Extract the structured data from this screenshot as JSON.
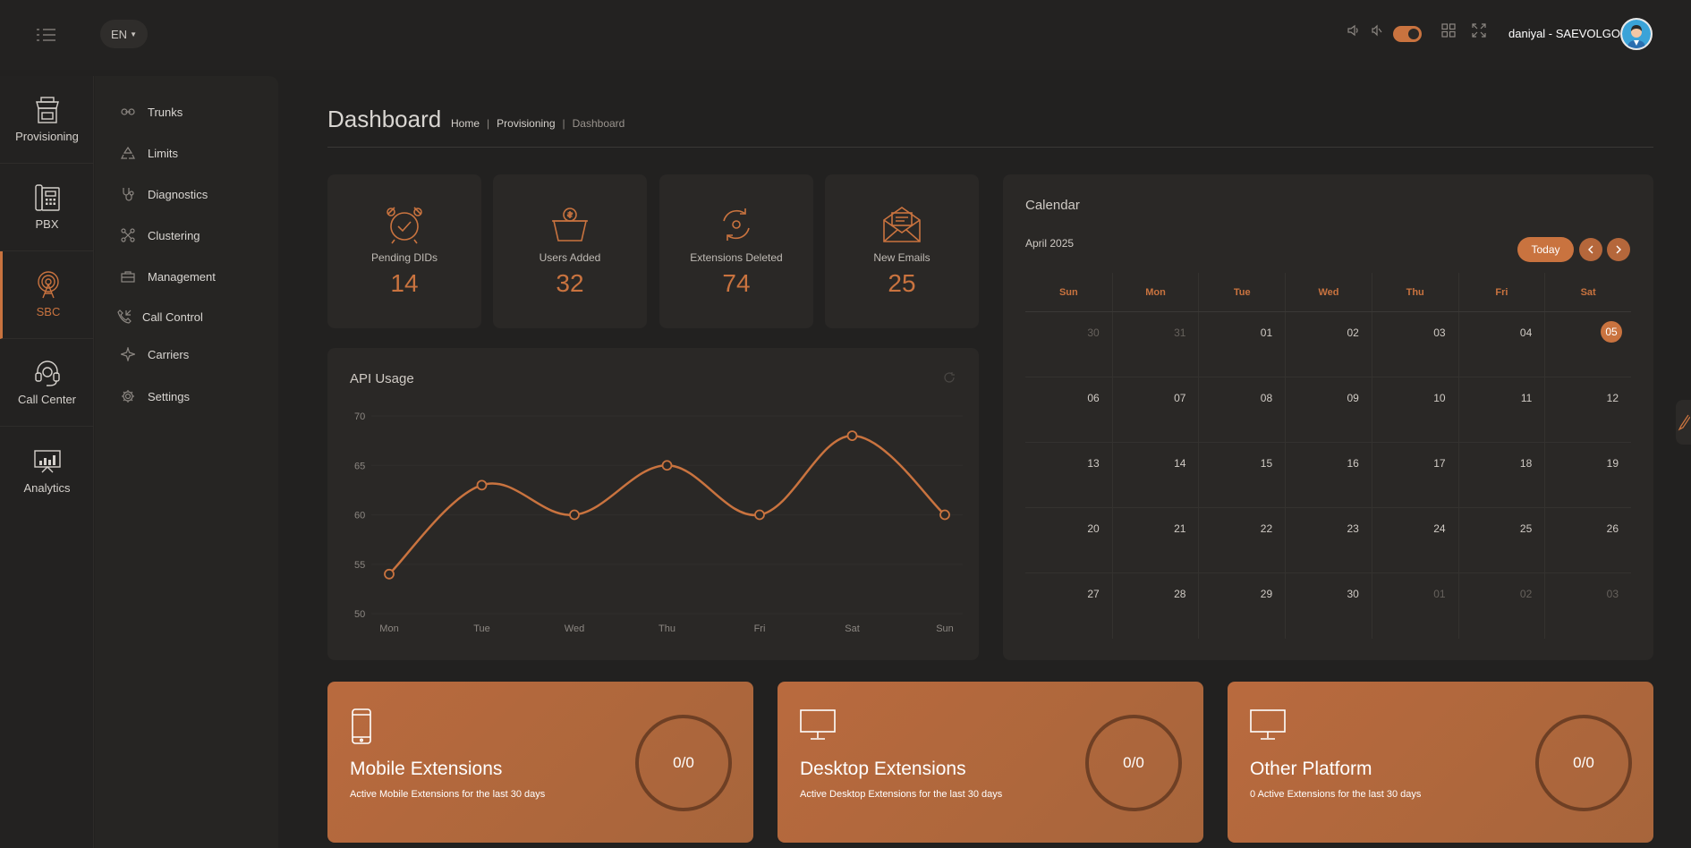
{
  "header": {
    "language": "EN",
    "username": "daniyal - SAEVOLGO"
  },
  "rail": {
    "items": [
      {
        "label": "Provisioning",
        "icon": "store-icon"
      },
      {
        "label": "PBX",
        "icon": "phone-keypad-icon"
      },
      {
        "label": "SBC",
        "icon": "antenna-icon",
        "active": true
      },
      {
        "label": "Call Center",
        "icon": "headset-icon"
      },
      {
        "label": "Analytics",
        "icon": "analytics-icon"
      }
    ]
  },
  "submenu": {
    "items": [
      {
        "label": "Trunks",
        "icon": "link-icon"
      },
      {
        "label": "Limits",
        "icon": "recycle-icon"
      },
      {
        "label": "Diagnostics",
        "icon": "stethoscope-icon"
      },
      {
        "label": "Clustering",
        "icon": "cluster-icon"
      },
      {
        "label": "Management",
        "icon": "briefcase-icon"
      },
      {
        "label": "Call Control",
        "icon": "phone-call-icon"
      },
      {
        "label": "Carriers",
        "icon": "plane-icon"
      },
      {
        "label": "Settings",
        "icon": "gear-icon"
      }
    ]
  },
  "page": {
    "title": "Dashboard",
    "breadcrumb": [
      "Home",
      "Provisioning",
      "Dashboard"
    ]
  },
  "stats": [
    {
      "label": "Pending DIDs",
      "value": "14",
      "icon": "alarm-clock-icon"
    },
    {
      "label": "Users Added",
      "value": "32",
      "icon": "basket-icon"
    },
    {
      "label": "Extensions Deleted",
      "value": "74",
      "icon": "sync-icon"
    },
    {
      "label": "New Emails",
      "value": "25",
      "icon": "envelope-icon"
    }
  ],
  "api_usage": {
    "title": "API Usage"
  },
  "chart_data": {
    "type": "line",
    "x": [
      "Mon",
      "Tue",
      "Wed",
      "Thu",
      "Fri",
      "Sat",
      "Sun"
    ],
    "values": [
      54,
      63,
      60,
      65,
      60,
      68,
      60
    ],
    "ylim": [
      50,
      70
    ],
    "yticks": [
      70,
      65,
      60,
      55,
      50
    ],
    "grid": true,
    "color": "#c9733f"
  },
  "calendar": {
    "title": "Calendar",
    "month_label": "April 2025",
    "today_label": "Today",
    "weekdays": [
      "Sun",
      "Mon",
      "Tue",
      "Wed",
      "Thu",
      "Fri",
      "Sat"
    ],
    "weeks": [
      [
        "30",
        "31",
        "01",
        "02",
        "03",
        "04",
        "05"
      ],
      [
        "06",
        "07",
        "08",
        "09",
        "10",
        "11",
        "12"
      ],
      [
        "13",
        "14",
        "15",
        "16",
        "17",
        "18",
        "19"
      ],
      [
        "20",
        "21",
        "22",
        "23",
        "24",
        "25",
        "26"
      ],
      [
        "27",
        "28",
        "29",
        "30",
        "01",
        "02",
        "03"
      ]
    ],
    "other_month": [
      [
        0,
        0
      ],
      [
        0,
        1
      ],
      [
        4,
        4
      ],
      [
        4,
        5
      ],
      [
        4,
        6
      ]
    ],
    "today_cell": [
      0,
      6
    ]
  },
  "promos": [
    {
      "title": "Mobile Extensions",
      "subtitle": "Active Mobile Extensions for the last 30 days",
      "count": "0/0",
      "icon": "mobile-phone-icon"
    },
    {
      "title": "Desktop Extensions",
      "subtitle": "Active Desktop Extensions for the last 30 days",
      "count": "0/0",
      "icon": "monitor-icon"
    },
    {
      "title": "Other Platform",
      "subtitle": "0 Active Extensions for the last 30 days",
      "count": "0/0",
      "icon": "monitor-icon"
    }
  ],
  "colors": {
    "accent": "#c9733f",
    "background": "#222120",
    "panel": "#2a2826"
  }
}
